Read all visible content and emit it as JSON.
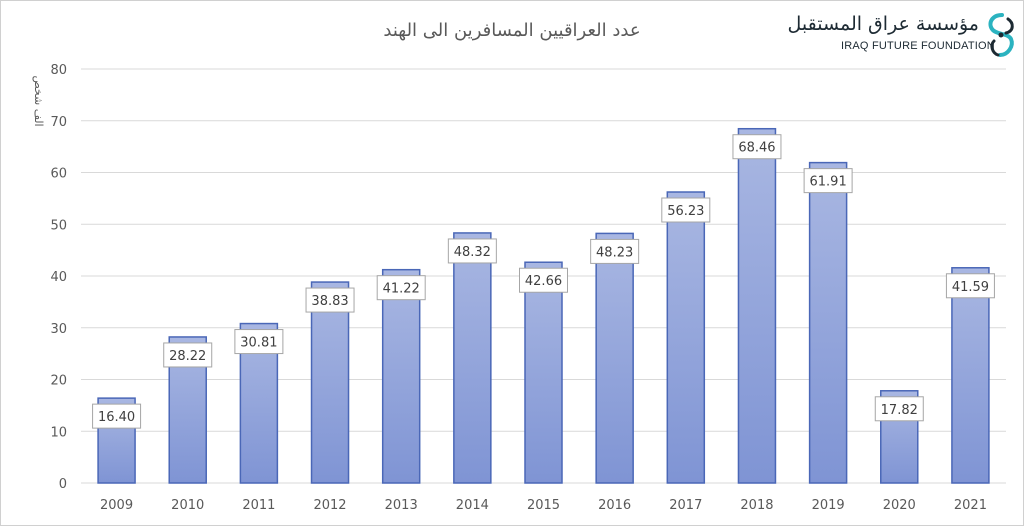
{
  "logo": {
    "arabic": "مؤسسة عراق المستقبل",
    "english": "IRAQ FUTURE FOUNDATION",
    "icon": "iraq-future-foundation-logo-icon"
  },
  "colors": {
    "bar_fill_top": "#a9b7e2",
    "bar_fill_bottom": "#7f94d4",
    "bar_stroke": "#4a67b7",
    "grid": "#d9d9d9",
    "axis_text": "#595959",
    "title": "#595959",
    "label_border": "#a6a6a6",
    "label_text": "#404040",
    "logo_teal": "#2bb3c0",
    "logo_dark": "#1d2a33"
  },
  "chart_data": {
    "type": "bar",
    "title": "عدد العراقيين المسافرين الى الهند",
    "ylabel": "الف شخص",
    "xlabel": "",
    "categories": [
      "2009",
      "2010",
      "2011",
      "2012",
      "2013",
      "2014",
      "2015",
      "2016",
      "2017",
      "2018",
      "2019",
      "2020",
      "2021"
    ],
    "values": [
      16.4,
      28.22,
      30.81,
      38.83,
      41.22,
      48.32,
      42.66,
      48.23,
      56.23,
      68.46,
      61.91,
      17.82,
      41.59
    ],
    "data_labels": [
      "16.40",
      "28.22",
      "30.81",
      "38.83",
      "41.22",
      "48.32",
      "42.66",
      "48.23",
      "56.23",
      "68.46",
      "61.91",
      "17.82",
      "41.59"
    ],
    "ylim": [
      0,
      80
    ],
    "yticks": [
      0,
      10,
      20,
      30,
      40,
      50,
      60,
      70,
      80
    ],
    "grid": true,
    "legend": "none"
  }
}
